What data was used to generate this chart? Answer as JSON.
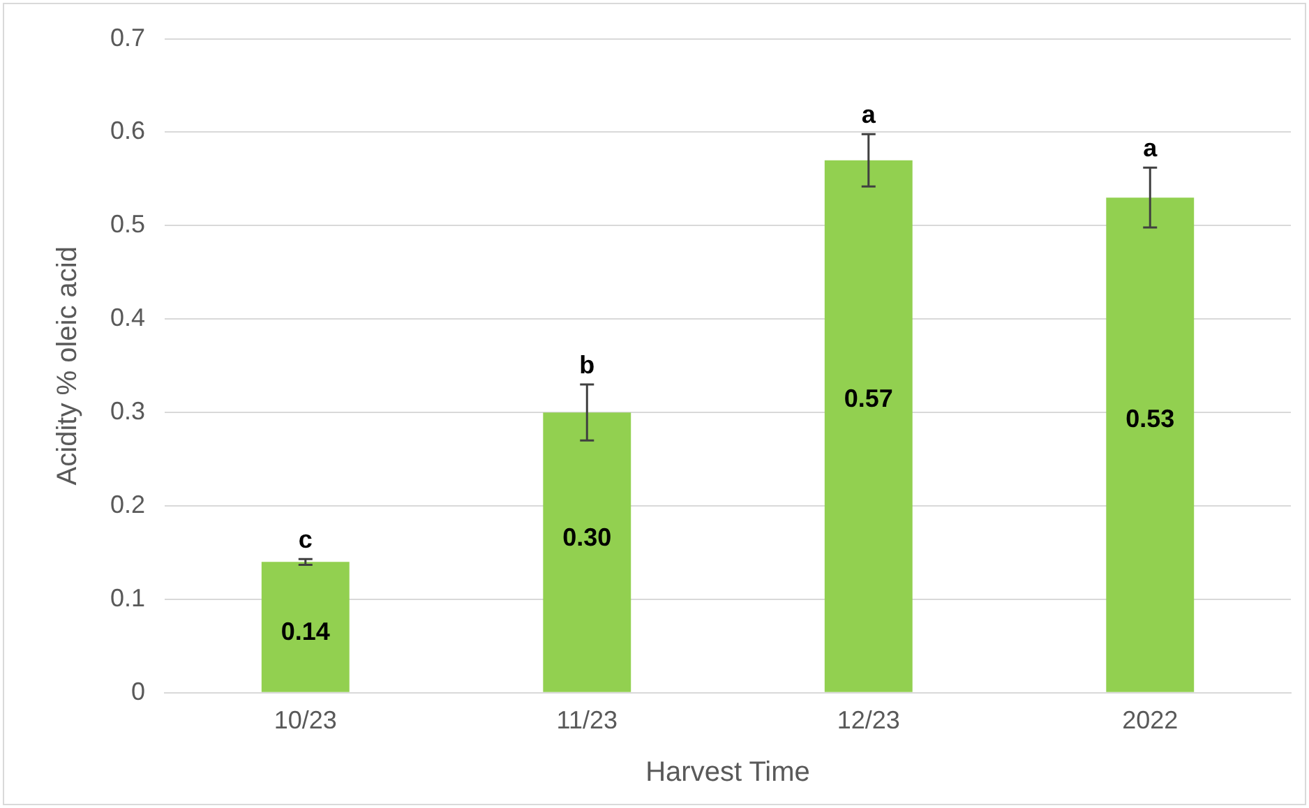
{
  "chart_data": {
    "type": "bar",
    "xlabel": "Harvest Time",
    "ylabel": "Acidity % oleic acid",
    "categories": [
      "10/23",
      "11/23",
      "12/23",
      "2022"
    ],
    "values": [
      0.14,
      0.3,
      0.57,
      0.53
    ],
    "value_labels": [
      "0.14",
      "0.30",
      "0.57",
      "0.53"
    ],
    "errors": [
      0.003,
      0.03,
      0.028,
      0.032
    ],
    "color": "#92d050",
    "ylim": [
      0,
      0.7
    ],
    "yticks": [
      0,
      0.1,
      0.2,
      0.3,
      0.4,
      0.5,
      0.6,
      0.7
    ],
    "grid": "y",
    "annotations": [
      {
        "text": "c",
        "x": "10/23",
        "y": 0.143
      },
      {
        "text": "b",
        "x": "11/23",
        "y": 0.33
      },
      {
        "text": "a",
        "x": "12/23",
        "y": 0.598
      },
      {
        "text": "a",
        "x": "2022",
        "y": 0.562
      }
    ]
  }
}
